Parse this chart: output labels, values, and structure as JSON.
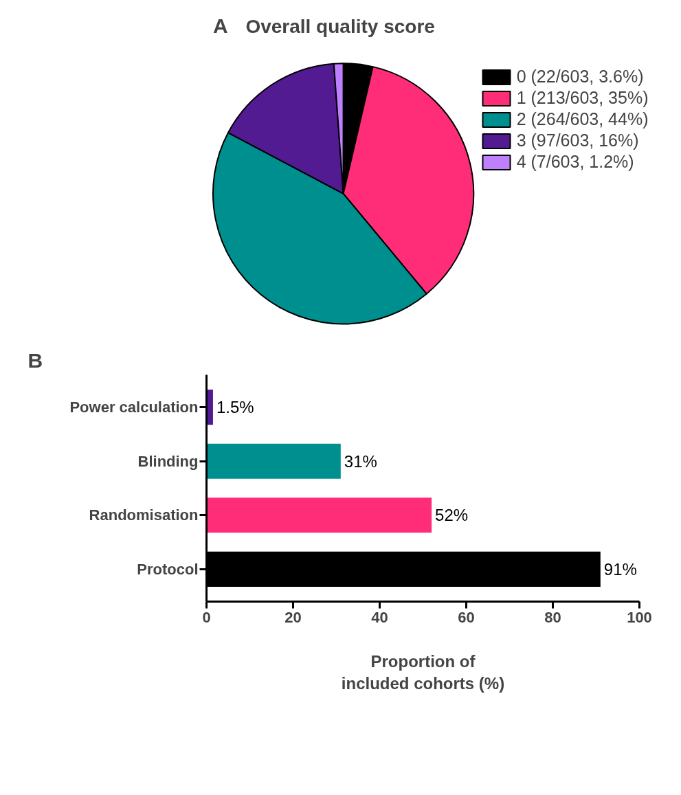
{
  "chart_data": [
    {
      "type": "pie",
      "title": "Overall quality score",
      "annotations": [
        "A"
      ],
      "categories": [
        "0 (22/603, 3.6%)",
        "1 (213/603, 35%)",
        "2 (264/603, 44%)",
        "3 (97/603, 16%)",
        "4 (7/603, 1.2%)"
      ],
      "values": [
        22,
        213,
        264,
        97,
        7
      ],
      "colors": [
        "#000000",
        "#ff2d78",
        "#008f8f",
        "#521b92",
        "#bf80ff"
      ],
      "legend": "right"
    },
    {
      "type": "bar",
      "orientation": "horizontal",
      "annotations": [
        "B"
      ],
      "categories": [
        "Power calculation",
        "Blinding",
        "Randomisation",
        "Protocol"
      ],
      "values": [
        1.5,
        31,
        52,
        91
      ],
      "value_labels": [
        "1.5%",
        "31%",
        "52%",
        "91%"
      ],
      "colors": [
        "#521b92",
        "#008f8f",
        "#ff2d78",
        "#000000"
      ],
      "xlabel": "Proportion of\nincluded cohorts (%)",
      "xlim": [
        0,
        100
      ],
      "xticks": [
        0,
        20,
        40,
        60,
        80,
        100
      ],
      "grid": false
    }
  ]
}
